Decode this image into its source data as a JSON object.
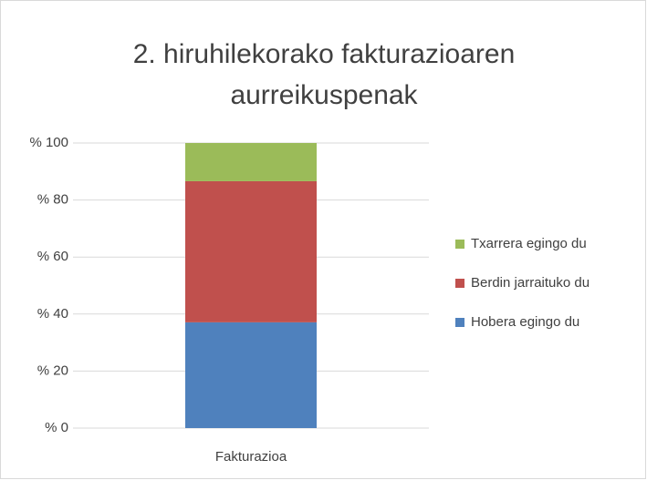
{
  "chart_data": {
    "type": "stacked_bar",
    "title": "2. hiruhilekorako fakturazioaren aurreikuspenak",
    "categories": [
      "Fakturazioa"
    ],
    "series": [
      {
        "name": "Hobera egingo du",
        "color": "#4f81bd",
        "values": [
          37.1
        ]
      },
      {
        "name": "Berdin jarraituko du",
        "color": "#c0504d",
        "values": [
          49.5
        ]
      },
      {
        "name": "Txarrera egingo du",
        "color": "#9bbb59",
        "values": [
          13.4
        ]
      }
    ],
    "ylim": [
      0,
      100
    ],
    "yticks": [
      {
        "value": 0,
        "label": "% 0"
      },
      {
        "value": 20,
        "label": "% 20"
      },
      {
        "value": 40,
        "label": "% 40"
      },
      {
        "value": 60,
        "label": "% 60"
      },
      {
        "value": 80,
        "label": "% 80"
      },
      {
        "value": 100,
        "label": "% 100"
      }
    ],
    "grid": true,
    "legend": "right"
  }
}
